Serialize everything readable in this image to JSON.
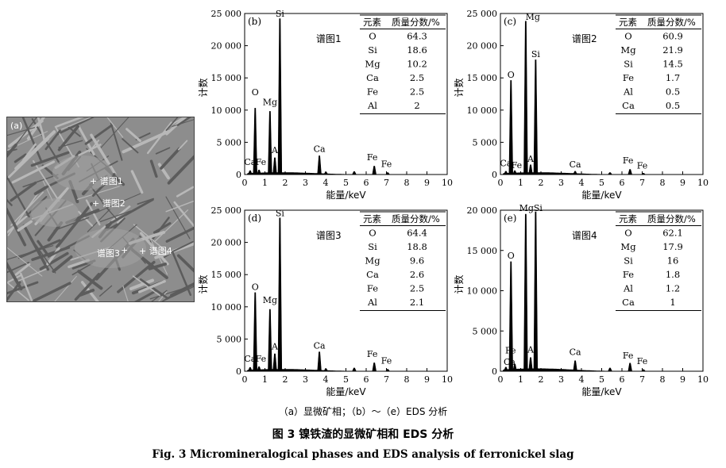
{
  "figure": {
    "panel_a_label": "(a)",
    "spot_labels": [
      "谱图1",
      "谱图2",
      "谱图3",
      "谱图4"
    ],
    "subcaption": "（a）显微矿相；（b）～（e）EDS 分析",
    "caption_zh": "图 3   镍铁渣的显微矿相和 EDS 分析",
    "caption_en": "Fig. 3    Micromineralogical phases and EDS analysis of ferronickel slag",
    "table_header_element": "元素",
    "table_header_fraction": "质量分数/%"
  },
  "chart_data": [
    {
      "type": "bar",
      "panel": "(b)",
      "spectrum_label": "谱图1",
      "xlabel": "能量/keV",
      "ylabel": "计数",
      "xlim": [
        0,
        10
      ],
      "ylim": [
        0,
        25000
      ],
      "x_ticks": [
        0,
        1,
        2,
        3,
        4,
        5,
        6,
        7,
        8,
        9,
        10
      ],
      "y_ticks": [
        0,
        5000,
        10000,
        15000,
        20000,
        25000
      ],
      "y_tick_labels": [
        "0",
        "5 000",
        "10 000",
        "15 000",
        "20 000",
        "25 000"
      ],
      "peaks": [
        {
          "label": "C",
          "x": 0.27,
          "y": 600
        },
        {
          "label": "O",
          "x": 0.52,
          "y": 10300
        },
        {
          "label": "Fe",
          "x": 0.71,
          "y": 700
        },
        {
          "label": "Mg",
          "x": 1.25,
          "y": 9800
        },
        {
          "label": "Al",
          "x": 1.49,
          "y": 2600
        },
        {
          "label": "Si",
          "x": 1.74,
          "y": 24200
        },
        {
          "label": "Ca",
          "x": 3.69,
          "y": 2900
        },
        {
          "label": "",
          "x": 4.01,
          "y": 400
        },
        {
          "label": "",
          "x": 5.41,
          "y": 450
        },
        {
          "label": "Fe",
          "x": 6.4,
          "y": 1300
        },
        {
          "label": "Fe",
          "x": 7.06,
          "y": 300
        }
      ],
      "peak_text": [
        {
          "text": "Si",
          "x": 1.74,
          "y": 24500
        },
        {
          "text": "O",
          "x": 0.52,
          "y": 12300
        },
        {
          "text": "Mg",
          "x": 1.25,
          "y": 10800
        },
        {
          "text": "Ca",
          "x": 0.27,
          "y": 1500
        },
        {
          "text": "Fe",
          "x": 0.8,
          "y": 1500
        },
        {
          "text": "A",
          "x": 1.49,
          "y": 3300
        },
        {
          "text": "Ca",
          "x": 3.69,
          "y": 3500
        },
        {
          "text": "Fe",
          "x": 6.3,
          "y": 2200
        },
        {
          "text": "Fe",
          "x": 7.0,
          "y": 1200
        }
      ],
      "table": [
        {
          "element": "O",
          "value": "64.3"
        },
        {
          "element": "Si",
          "value": "18.6"
        },
        {
          "element": "Mg",
          "value": "10.2"
        },
        {
          "element": "Ca",
          "value": "2.5"
        },
        {
          "element": "Fe",
          "value": "2.5"
        },
        {
          "element": "Al",
          "value": "2"
        }
      ]
    },
    {
      "type": "bar",
      "panel": "(c)",
      "spectrum_label": "谱图2",
      "xlabel": "能量/keV",
      "ylabel": "计数",
      "xlim": [
        0,
        10
      ],
      "ylim": [
        0,
        25000
      ],
      "x_ticks": [
        0,
        1,
        2,
        3,
        4,
        5,
        6,
        7,
        8,
        9,
        10
      ],
      "y_ticks": [
        0,
        5000,
        10000,
        15000,
        20000,
        25000
      ],
      "y_tick_labels": [
        "0",
        "5 000",
        "10 000",
        "15 000",
        "20 000",
        "25 000"
      ],
      "peaks": [
        {
          "label": "C",
          "x": 0.27,
          "y": 500
        },
        {
          "label": "O",
          "x": 0.52,
          "y": 14600
        },
        {
          "label": "Fe",
          "x": 0.71,
          "y": 600
        },
        {
          "label": "Mg",
          "x": 1.25,
          "y": 23800
        },
        {
          "label": "Al",
          "x": 1.49,
          "y": 1500
        },
        {
          "label": "Si",
          "x": 1.74,
          "y": 17800
        },
        {
          "label": "Ca",
          "x": 3.69,
          "y": 500
        },
        {
          "label": "",
          "x": 5.41,
          "y": 300
        },
        {
          "label": "Fe",
          "x": 6.4,
          "y": 800
        },
        {
          "label": "Fe",
          "x": 7.06,
          "y": 200
        }
      ],
      "peak_text": [
        {
          "text": "Mg",
          "x": 1.6,
          "y": 24000
        },
        {
          "text": "Si",
          "x": 1.74,
          "y": 18200
        },
        {
          "text": "O",
          "x": 0.52,
          "y": 15000
        },
        {
          "text": "Ca",
          "x": 0.27,
          "y": 1300
        },
        {
          "text": "Fe",
          "x": 0.8,
          "y": 1000
        },
        {
          "text": "A",
          "x": 1.49,
          "y": 2000
        },
        {
          "text": "Ca",
          "x": 3.69,
          "y": 1100
        },
        {
          "text": "Fe",
          "x": 6.3,
          "y": 1700
        },
        {
          "text": "Fe",
          "x": 7.0,
          "y": 900
        }
      ],
      "table": [
        {
          "element": "O",
          "value": "60.9"
        },
        {
          "element": "Mg",
          "value": "21.9"
        },
        {
          "element": "Si",
          "value": "14.5"
        },
        {
          "element": "Fe",
          "value": "1.7"
        },
        {
          "element": "Al",
          "value": "0.5"
        },
        {
          "element": "Ca",
          "value": "0.5"
        }
      ]
    },
    {
      "type": "bar",
      "panel": "(d)",
      "spectrum_label": "谱图3",
      "xlabel": "能量/keV",
      "ylabel": "计数",
      "xlim": [
        0,
        10
      ],
      "ylim": [
        0,
        25000
      ],
      "x_ticks": [
        0,
        1,
        2,
        3,
        4,
        5,
        6,
        7,
        8,
        9,
        10
      ],
      "y_ticks": [
        0,
        5000,
        10000,
        15000,
        20000,
        25000
      ],
      "y_tick_labels": [
        "0",
        "5 000",
        "10 000",
        "15 000",
        "20 000",
        "25 000"
      ],
      "peaks": [
        {
          "label": "C",
          "x": 0.27,
          "y": 600
        },
        {
          "label": "O",
          "x": 0.52,
          "y": 12200
        },
        {
          "label": "Fe",
          "x": 0.71,
          "y": 700
        },
        {
          "label": "Mg",
          "x": 1.25,
          "y": 9600
        },
        {
          "label": "Al",
          "x": 1.49,
          "y": 2700
        },
        {
          "label": "Si",
          "x": 1.74,
          "y": 23800
        },
        {
          "label": "Ca",
          "x": 3.69,
          "y": 3000
        },
        {
          "label": "",
          "x": 4.01,
          "y": 400
        },
        {
          "label": "",
          "x": 5.41,
          "y": 500
        },
        {
          "label": "Fe",
          "x": 6.4,
          "y": 1300
        },
        {
          "label": "Fe",
          "x": 7.06,
          "y": 300
        }
      ],
      "peak_text": [
        {
          "text": "Si",
          "x": 1.74,
          "y": 24100
        },
        {
          "text": "O",
          "x": 0.52,
          "y": 12600
        },
        {
          "text": "Mg",
          "x": 1.25,
          "y": 10600
        },
        {
          "text": "Ca",
          "x": 0.27,
          "y": 1500
        },
        {
          "text": "Fe",
          "x": 0.8,
          "y": 1500
        },
        {
          "text": "A",
          "x": 1.49,
          "y": 3400
        },
        {
          "text": "Ca",
          "x": 3.69,
          "y": 3500
        },
        {
          "text": "Fe",
          "x": 6.3,
          "y": 2200
        },
        {
          "text": "Fe",
          "x": 7.0,
          "y": 1200
        }
      ],
      "table": [
        {
          "element": "O",
          "value": "64.4"
        },
        {
          "element": "Si",
          "value": "18.8"
        },
        {
          "element": "Mg",
          "value": "9.6"
        },
        {
          "element": "Ca",
          "value": "2.6"
        },
        {
          "element": "Fe",
          "value": "2.5"
        },
        {
          "element": "Al",
          "value": "2.1"
        }
      ]
    },
    {
      "type": "bar",
      "panel": "(e)",
      "spectrum_label": "谱图4",
      "xlabel": "能量/keV",
      "ylabel": "计数",
      "xlim": [
        0,
        10
      ],
      "ylim": [
        0,
        20000
      ],
      "x_ticks": [
        0,
        1,
        2,
        3,
        4,
        5,
        6,
        7,
        8,
        9,
        10
      ],
      "y_ticks": [
        0,
        5000,
        10000,
        15000,
        20000
      ],
      "y_tick_labels": [
        "0",
        "5 000",
        "10 000",
        "15 000",
        "20 000"
      ],
      "peaks": [
        {
          "label": "C",
          "x": 0.27,
          "y": 500
        },
        {
          "label": "O",
          "x": 0.52,
          "y": 13600
        },
        {
          "label": "Fe",
          "x": 0.71,
          "y": 900
        },
        {
          "label": "Mg",
          "x": 1.25,
          "y": 19500
        },
        {
          "label": "Al",
          "x": 1.49,
          "y": 1700
        },
        {
          "label": "Si",
          "x": 1.74,
          "y": 19800
        },
        {
          "label": "Ca",
          "x": 3.69,
          "y": 1300
        },
        {
          "label": "",
          "x": 5.41,
          "y": 400
        },
        {
          "label": "Fe",
          "x": 6.4,
          "y": 1000
        },
        {
          "label": "Fe",
          "x": 7.06,
          "y": 200
        }
      ],
      "peak_text": [
        {
          "text": "MgSi",
          "x": 1.5,
          "y": 19900
        },
        {
          "text": "O",
          "x": 0.52,
          "y": 14000
        },
        {
          "text": "Fe",
          "x": 0.5,
          "y": 2200
        },
        {
          "text": "Ca",
          "x": 0.45,
          "y": 800
        },
        {
          "text": "A",
          "x": 1.49,
          "y": 2300
        },
        {
          "text": "Ca",
          "x": 3.69,
          "y": 2000
        },
        {
          "text": "Fe",
          "x": 6.3,
          "y": 1600
        },
        {
          "text": "Fe",
          "x": 7.0,
          "y": 900
        }
      ],
      "table": [
        {
          "element": "O",
          "value": "62.1"
        },
        {
          "element": "Mg",
          "value": "17.9"
        },
        {
          "element": "Si",
          "value": "16"
        },
        {
          "element": "Fe",
          "value": "1.8"
        },
        {
          "element": "Al",
          "value": "1.2"
        },
        {
          "element": "Ca",
          "value": "1"
        }
      ]
    }
  ]
}
